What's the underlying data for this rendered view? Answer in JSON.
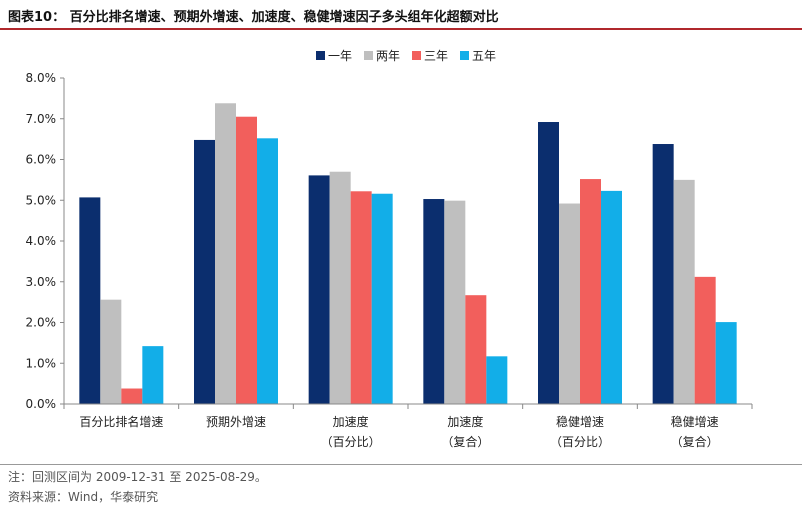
{
  "figure": {
    "title": "图表10：  百分比排名增速、预期外增速、加速度、稳健增速因子多头组年化超额对比",
    "note": "注：回测区间为 2009-12-31 至 2025-08-29。",
    "source": "资料来源：Wind，华泰研究"
  },
  "chart_data": {
    "type": "bar",
    "categories": [
      [
        "百分比排名增速"
      ],
      [
        "预期外增速"
      ],
      [
        "加速度",
        "（百分比）"
      ],
      [
        "加速度",
        "（复合）"
      ],
      [
        "稳健增速",
        "（百分比）"
      ],
      [
        "稳健增速",
        "（复合）"
      ]
    ],
    "series": [
      {
        "name": "一年",
        "color": "#0b2e6e",
        "values": [
          5.07,
          6.48,
          5.61,
          5.03,
          6.92,
          6.38
        ]
      },
      {
        "name": "两年",
        "color": "#bfbfbf",
        "values": [
          2.56,
          7.38,
          5.7,
          4.99,
          4.92,
          5.5
        ]
      },
      {
        "name": "三年",
        "color": "#f25f5c",
        "values": [
          0.38,
          7.05,
          5.22,
          2.67,
          5.52,
          3.12
        ]
      },
      {
        "name": "五年",
        "color": "#12aee8",
        "values": [
          1.42,
          6.52,
          5.16,
          1.17,
          5.23,
          2.01
        ]
      }
    ],
    "ylim": [
      0,
      8
    ],
    "yticks": [
      "0.0%",
      "1.0%",
      "2.0%",
      "3.0%",
      "4.0%",
      "5.0%",
      "6.0%",
      "7.0%",
      "8.0%"
    ],
    "legend_position": "top-center",
    "grid": false
  }
}
